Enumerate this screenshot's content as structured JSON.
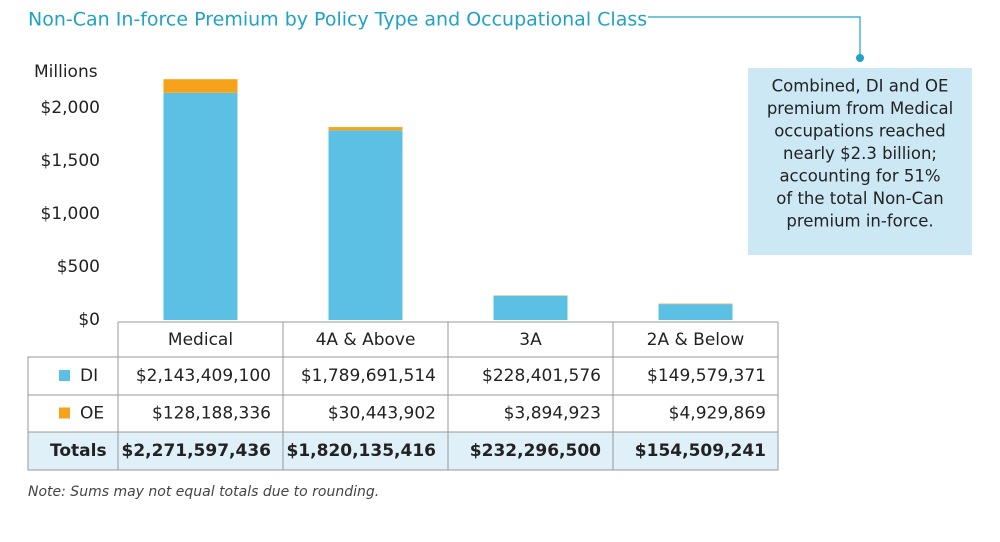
{
  "chart_data": {
    "type": "stacked_bar",
    "title": "Non-Can In-force Premium by Policy Type and Occupational Class",
    "ylabel": "Millions",
    "categories": [
      "Medical",
      "4A & Above",
      "3A",
      "2A & Below"
    ],
    "series": [
      {
        "name": "DI",
        "color": "#5bc0e3",
        "values": [
          2143.4091,
          1789.691514,
          228.401576,
          149.579371
        ],
        "value_labels": [
          "$2,143,409,100",
          "$1,789,691,514",
          "$228,401,576",
          "$149,579,371"
        ]
      },
      {
        "name": "OE",
        "color": "#f7a21b",
        "values": [
          128.188336,
          30.443902,
          3.894923,
          4.929869
        ],
        "value_labels": [
          "$128,188,336",
          "$30,443,902",
          "$3,894,923",
          "$4,929,869"
        ]
      }
    ],
    "totals": {
      "name": "Totals",
      "values": [
        2271.597436,
        1820.135416,
        232.2965,
        154.509241
      ],
      "value_labels": [
        "$2,271,597,436",
        "$1,820,135,416",
        "$232,296,500",
        "$154,509,241"
      ]
    },
    "ylim": [
      0,
      2250
    ],
    "yticks": [
      {
        "value": 0,
        "label": "$0"
      },
      {
        "value": 500,
        "label": "$500"
      },
      {
        "value": 1000,
        "label": "$1,000"
      },
      {
        "value": 1500,
        "label": "$1,500"
      },
      {
        "value": 2000,
        "label": "$2,000"
      }
    ],
    "annotation_lines": [
      "Combined, DI and OE",
      "premium from Medical",
      "occupations reached",
      "nearly $2.3 billion;",
      "accounting for 51%",
      "of the total Non-Can",
      "premium in-force."
    ],
    "note": "Note: Sums may not equal totals due to rounding."
  }
}
